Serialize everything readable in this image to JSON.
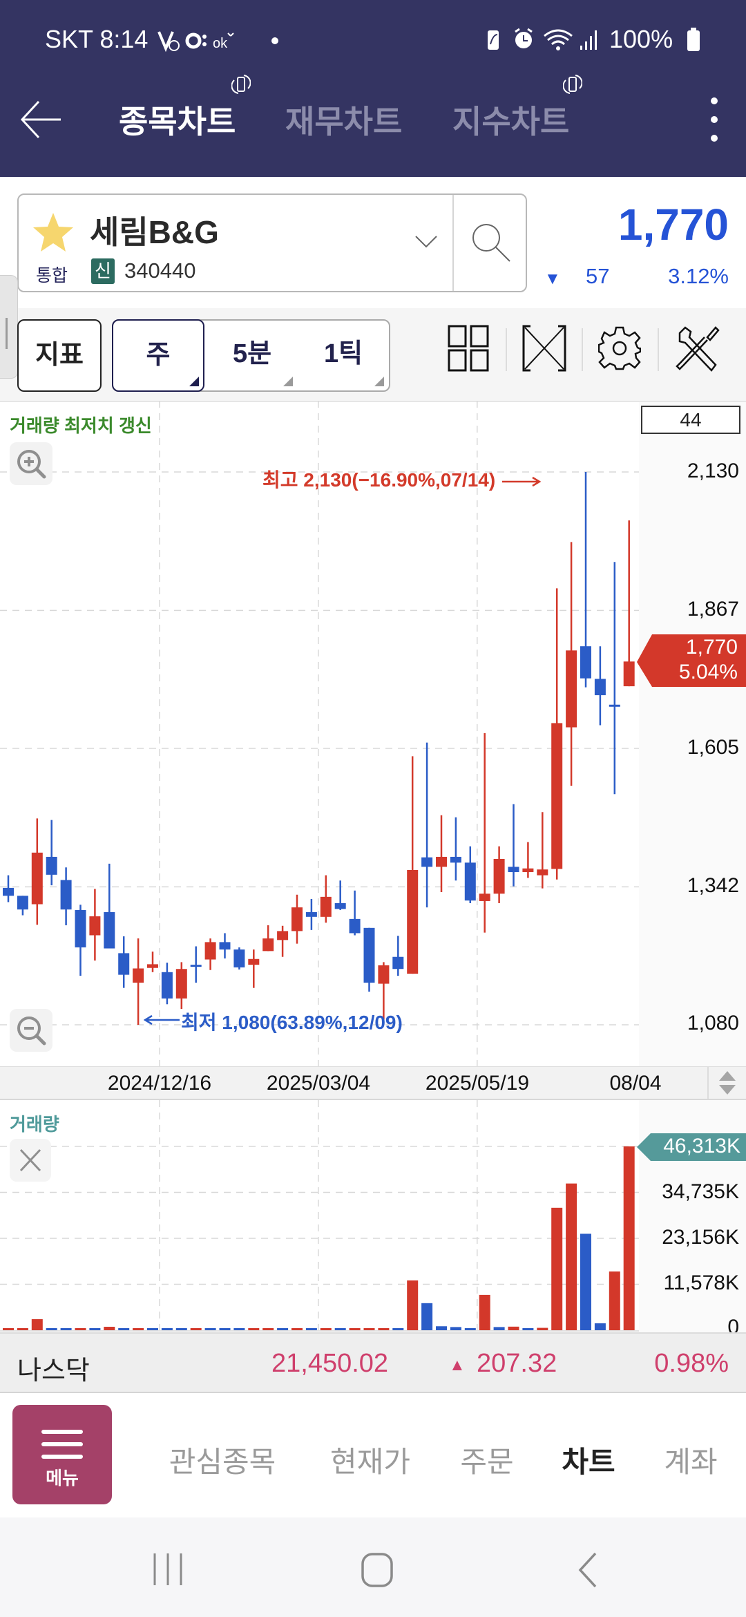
{
  "status_bar": {
    "carrier_time": "SKT 8:14",
    "battery": "100%",
    "left_icons": [
      "voicemail-icon",
      "ok-cashbag-icon",
      "okay-icon",
      "dot-icon"
    ],
    "right_icons": [
      "battery-saver-icon",
      "alarm-icon",
      "wifi-icon",
      "signal-icon",
      "battery-icon"
    ]
  },
  "header": {
    "tabs": [
      {
        "label": "종목차트",
        "active": true
      },
      {
        "label": "재무차트",
        "active": false
      },
      {
        "label": "지수차트",
        "active": false
      }
    ]
  },
  "stock": {
    "name": "세림B&G",
    "market": "통합",
    "badge": "신",
    "code": "340440",
    "price": "1,770",
    "change_arrow": "▼",
    "change": "57",
    "change_pct": "3.12%"
  },
  "toolbar": {
    "indicator_label": "지표",
    "periods": [
      {
        "label": "주",
        "selected": true
      },
      {
        "label": "5분",
        "selected": false
      },
      {
        "label": "1틱",
        "selected": false
      }
    ],
    "tools": [
      "layout-grid-icon",
      "fullscreen-icon",
      "settings-gear-icon",
      "tools-icon"
    ]
  },
  "chart": {
    "notice": "거래량 최저치 갱신",
    "candle_count": "44",
    "high_annotation": "최고 2,130(−16.90%,07/14)",
    "low_annotation": "최저 1,080(63.89%,12/09)",
    "price_ticks": [
      "2,130",
      "1,867",
      "1,605",
      "1,342",
      "1,080"
    ],
    "current_tag": {
      "price": "1,770",
      "pct": "5.04%"
    },
    "date_labels": [
      "2024/12/16",
      "2025/03/04",
      "2025/05/19",
      "08/04"
    ]
  },
  "volume": {
    "title": "거래량",
    "ticks": [
      "34,735K",
      "23,156K",
      "11,578K",
      "0"
    ],
    "current_tag": "46,313K"
  },
  "ticker": {
    "name": "나스닥",
    "value": "21,450.02",
    "change_arrow": "▲",
    "change": "207.32",
    "change_pct": "0.98%"
  },
  "bottom_nav": {
    "menu_label": "메뉴",
    "items": [
      {
        "label": "관심종목",
        "active": false
      },
      {
        "label": "현재가",
        "active": false
      },
      {
        "label": "주문",
        "active": false
      },
      {
        "label": "차트",
        "active": true
      },
      {
        "label": "계좌",
        "active": false
      }
    ]
  },
  "colors": {
    "header_bg": "#343462",
    "up": "#d3382a",
    "down": "#2b5cc7",
    "price_blue": "#2553d6",
    "notice_green": "#3b8a2c",
    "volume_teal": "#559a9a",
    "ticker_pink": "#cf3f6c",
    "menu_button": "#a44168"
  },
  "chart_data": [
    {
      "type": "candlestick",
      "title": "세림B&G 주봉",
      "xlabel": "",
      "ylabel": "",
      "ylim": [
        1080,
        2130
      ],
      "y_ticks": [
        2130,
        1867,
        1605,
        1342,
        1080
      ],
      "grid": true,
      "x_tick_labels": [
        {
          "label": "2024/12/16",
          "index": 10
        },
        {
          "label": "2025/03/04",
          "index": 21
        },
        {
          "label": "2025/05/19",
          "index": 32
        },
        {
          "label": "08/04",
          "index": 43
        }
      ],
      "annotations": [
        {
          "text": "최고 2,130(−16.90%,07/14)",
          "index": 40,
          "value": 2130
        },
        {
          "text": "최저 1,080(63.89%,12/09)",
          "index": 9,
          "value": 1080
        },
        {
          "text": "1,770 5.04%",
          "index": 43,
          "value": 1770
        }
      ],
      "ohlc": [
        [
          1340,
          1364,
          1313,
          1325
        ],
        [
          1325,
          1325,
          1288,
          1299
        ],
        [
          1309,
          1472,
          1270,
          1407
        ],
        [
          1399,
          1469,
          1345,
          1365
        ],
        [
          1355,
          1379,
          1269,
          1299
        ],
        [
          1298,
          1308,
          1173,
          1227
        ],
        [
          1250,
          1338,
          1202,
          1286
        ],
        [
          1294,
          1386,
          1225,
          1225
        ],
        [
          1216,
          1248,
          1150,
          1175
        ],
        [
          1160,
          1244,
          1080,
          1187
        ],
        [
          1188,
          1219,
          1180,
          1195
        ],
        [
          1180,
          1198,
          1119,
          1130
        ],
        [
          1130,
          1199,
          1110,
          1186
        ],
        [
          1194,
          1229,
          1160,
          1191
        ],
        [
          1204,
          1244,
          1184,
          1237
        ],
        [
          1237,
          1254,
          1206,
          1223
        ],
        [
          1223,
          1227,
          1185,
          1189
        ],
        [
          1194,
          1223,
          1150,
          1205
        ],
        [
          1220,
          1269,
          1220,
          1244
        ],
        [
          1241,
          1268,
          1209,
          1258
        ],
        [
          1258,
          1327,
          1234,
          1303
        ],
        [
          1294,
          1319,
          1260,
          1285
        ],
        [
          1285,
          1364,
          1274,
          1323
        ],
        [
          1311,
          1354,
          1298,
          1300
        ],
        [
          1281,
          1335,
          1250,
          1254
        ],
        [
          1264,
          1264,
          1143,
          1160
        ],
        [
          1158,
          1199,
          1090,
          1193
        ],
        [
          1209,
          1249,
          1173,
          1186
        ],
        [
          1177,
          1590,
          1177,
          1374
        ],
        [
          1398,
          1616,
          1303,
          1380
        ],
        [
          1380,
          1478,
          1332,
          1399
        ],
        [
          1399,
          1474,
          1354,
          1388
        ],
        [
          1388,
          1419,
          1311,
          1316
        ],
        [
          1315,
          1634,
          1255,
          1329
        ],
        [
          1329,
          1419,
          1311,
          1395
        ],
        [
          1380,
          1499,
          1343,
          1370
        ],
        [
          1370,
          1427,
          1359,
          1377
        ],
        [
          1364,
          1484,
          1339,
          1375
        ],
        [
          1376,
          1909,
          1356,
          1653
        ],
        [
          1645,
          1997,
          1534,
          1791
        ],
        [
          1799,
          2130,
          1721,
          1738
        ],
        [
          1737,
          1799,
          1649,
          1706
        ],
        [
          1688,
          1959,
          1518,
          1685
        ],
        [
          1723,
          2038,
          1723,
          1770
        ]
      ]
    },
    {
      "type": "bar",
      "title": "거래량",
      "ylabel": "K",
      "ylim": [
        0,
        46313
      ],
      "y_ticks": [
        46313,
        34735,
        23156,
        11578,
        0
      ],
      "values": [
        300,
        300,
        2780,
        350,
        300,
        350,
        300,
        870,
        200,
        200,
        300,
        300,
        200,
        300,
        250,
        250,
        200,
        250,
        300,
        250,
        300,
        250,
        250,
        300,
        300,
        200,
        300,
        350,
        12550,
        6820,
        1000,
        800,
        500,
        8900,
        800,
        900,
        400,
        600,
        30850,
        36970,
        24300,
        1740,
        14800,
        46313
      ],
      "colors": [
        "up",
        "up",
        "up",
        "down",
        "down",
        "up",
        "down",
        "up",
        "down",
        "up",
        "down",
        "down",
        "down",
        "up",
        "down",
        "down",
        "down",
        "up",
        "up",
        "down",
        "up",
        "down",
        "up",
        "down",
        "up",
        "up",
        "up",
        "down",
        "up",
        "down",
        "down",
        "down",
        "down",
        "up",
        "down",
        "up",
        "down",
        "up",
        "up",
        "up",
        "down",
        "down",
        "up",
        "up"
      ]
    }
  ]
}
